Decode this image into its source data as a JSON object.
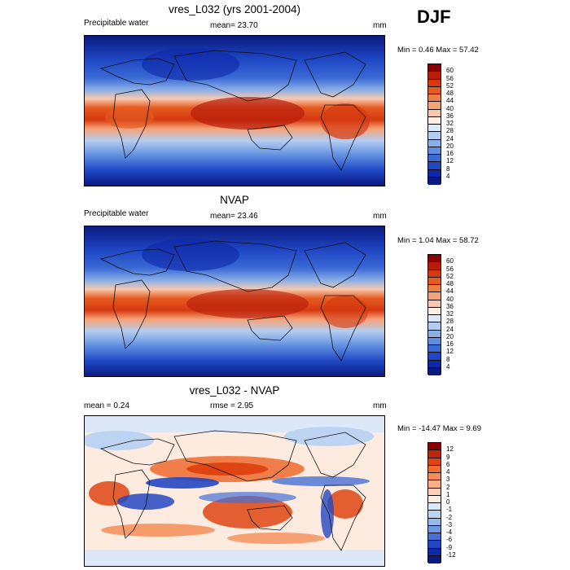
{
  "season": "DJF",
  "panels": [
    {
      "title": "vres_L032 (yrs 2001-2004)",
      "left_label": "Precipitable water",
      "mean_label": "mean=  23.70",
      "units": "mm",
      "minmax": "Min =   0.46 Max =  57.42",
      "colorbar": {
        "labels": [
          "60",
          "56",
          "52",
          "48",
          "44",
          "40",
          "36",
          "32",
          "28",
          "24",
          "20",
          "16",
          "12",
          "8",
          "4"
        ],
        "colors": [
          "#8b0000",
          "#b81d0a",
          "#d5390f",
          "#e55b22",
          "#ef7e43",
          "#f6a277",
          "#f9c8ac",
          "#fdeee4",
          "#dbe8f8",
          "#b3cdf1",
          "#89aee8",
          "#5f8ee0",
          "#3a6ad4",
          "#1f47c4",
          "#0d28a8",
          "#0a1a80"
        ]
      }
    },
    {
      "title": "NVAP",
      "left_label": "Precipitable water",
      "mean_label": "mean=  23.46",
      "units": "mm",
      "minmax": "Min =   1.04 Max =  58.72",
      "colorbar": {
        "labels": [
          "60",
          "56",
          "52",
          "48",
          "44",
          "40",
          "36",
          "32",
          "28",
          "24",
          "20",
          "16",
          "12",
          "8",
          "4"
        ],
        "colors": [
          "#8b0000",
          "#b81d0a",
          "#d5390f",
          "#e55b22",
          "#ef7e43",
          "#f6a277",
          "#f9c8ac",
          "#fdeee4",
          "#dbe8f8",
          "#b3cdf1",
          "#89aee8",
          "#5f8ee0",
          "#3a6ad4",
          "#1f47c4",
          "#0d28a8",
          "#0a1a80"
        ]
      }
    },
    {
      "title": "vres_L032 - NVAP",
      "left_label": "mean =   0.24",
      "mean_label": "rmse =   2.95",
      "units": "mm",
      "minmax": "Min = -14.47 Max =   9.69",
      "colorbar": {
        "labels": [
          "12",
          "9",
          "6",
          "4",
          "3",
          "2",
          "1",
          "0",
          "-1",
          "-2",
          "-3",
          "-4",
          "-6",
          "-9",
          "-12"
        ],
        "colors": [
          "#8b0000",
          "#c0250b",
          "#de4512",
          "#ef6a2e",
          "#f58d57",
          "#f9ae87",
          "#fbd0b8",
          "#fdebdf",
          "#dce8f8",
          "#bcd3f2",
          "#96b8ec",
          "#6f98e2",
          "#4670d6",
          "#2347c2",
          "#0f2aa6",
          "#0a1a80"
        ]
      }
    }
  ]
}
